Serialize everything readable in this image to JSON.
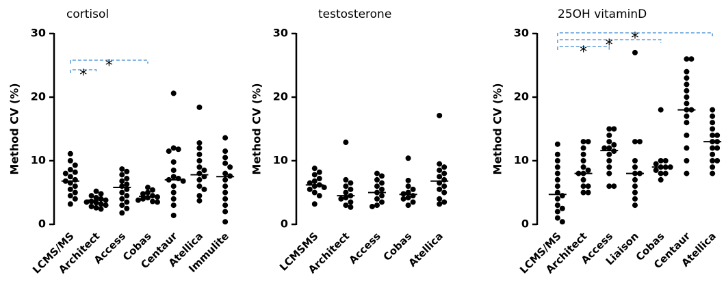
{
  "chart_data": [
    {
      "type": "dot",
      "title": "cortisol",
      "ylabel": "Method CV (%)",
      "categories": [
        "LCMS/MS",
        "Architect",
        "Access",
        "Cobas",
        "Centaur",
        "Atellica",
        "Immulite"
      ],
      "values": [
        [
          11.1,
          10,
          9.3,
          8.6,
          8.2,
          8,
          7.5,
          7,
          6.8,
          6.5,
          6,
          5.5,
          5,
          4.5,
          4,
          3.2
        ],
        [
          5.2,
          4.8,
          4.5,
          4.2,
          4,
          3.8,
          3.6,
          3.5,
          3.4,
          3.2,
          3,
          2.8,
          2.6,
          2.4
        ],
        [
          8.7,
          8.3,
          7.8,
          7.2,
          6.8,
          6.3,
          6,
          5.5,
          5,
          4.5,
          4,
          3.5,
          3,
          2.5,
          1.8
        ],
        [
          5.8,
          5.4,
          5,
          4.8,
          4.5,
          4.3,
          4.2,
          4,
          3.8,
          3.6,
          3.5
        ],
        [
          20.6,
          12,
          11.8,
          11.5,
          9.8,
          8.5,
          7.5,
          7.2,
          7,
          6.8,
          6,
          5,
          4,
          3,
          1.4
        ],
        [
          18.4,
          12.8,
          12,
          11,
          10,
          9,
          8.5,
          8,
          7.5,
          7,
          6,
          5.5,
          4.5,
          3.7
        ],
        [
          13.6,
          11.5,
          10.5,
          9.6,
          9,
          8,
          7.6,
          7,
          6,
          5,
          4,
          3,
          2,
          0.4
        ]
      ],
      "medians": [
        6.8,
        3.8,
        5.8,
        4.4,
        7,
        7.8,
        7.5
      ],
      "comparisons": [
        {
          "groups": [
            0,
            1
          ],
          "label": "*"
        },
        {
          "groups": [
            0,
            3
          ],
          "label": "*"
        }
      ],
      "color": "#000000",
      "comparison_color": "#5b9bd5",
      "ylim": [
        0,
        30
      ],
      "yticks": [
        0,
        10,
        20,
        30
      ]
    },
    {
      "type": "dot",
      "title": "testosterone",
      "ylabel": "Method CV (%)",
      "categories": [
        "LCMSMS",
        "Architect",
        "Access",
        "Cobas",
        "Atellica"
      ],
      "values": [
        [
          8.8,
          8.2,
          7.8,
          7.2,
          6.8,
          6.5,
          6.2,
          6,
          5.8,
          5.5,
          5,
          4.5,
          3.2
        ],
        [
          12.9,
          7,
          6.5,
          6,
          5.5,
          5,
          4.5,
          4.2,
          4,
          3.5,
          3,
          2.7
        ],
        [
          8,
          7.6,
          7,
          6.5,
          6,
          5.5,
          5,
          4.5,
          4,
          3.5,
          3,
          2.8
        ],
        [
          10.4,
          6.9,
          6,
          5.5,
          5,
          4.8,
          4.5,
          4.2,
          4,
          3.5,
          3
        ],
        [
          17.1,
          9.5,
          9,
          8.5,
          8,
          7.5,
          7,
          6.5,
          6,
          5.5,
          5,
          4,
          3.5,
          3.2
        ]
      ],
      "medians": [
        6.2,
        4.5,
        5,
        4.7,
        6.8
      ],
      "comparisons": [],
      "color": "#000000",
      "comparison_color": "#5b9bd5",
      "ylim": [
        0,
        30
      ],
      "yticks": [
        0,
        10,
        20,
        30
      ]
    },
    {
      "type": "dot",
      "title": "25OH vitaminD",
      "ylabel": "Method CV (%)",
      "categories": [
        "LCMS/MS",
        "Architect",
        "Access",
        "Liaison",
        "Cobas",
        "Centaur",
        "Atellica"
      ],
      "values": [
        [
          12.6,
          11,
          10,
          9,
          8,
          7,
          6,
          5,
          4.5,
          4,
          3,
          2.5,
          2,
          1,
          0.4
        ],
        [
          13,
          13,
          12,
          11,
          10,
          9,
          8.5,
          8,
          8,
          7,
          6,
          6,
          5,
          5
        ],
        [
          15,
          15,
          14,
          13,
          12.5,
          12,
          12,
          11.5,
          11,
          10,
          9,
          8,
          6,
          6
        ],
        [
          27,
          13,
          13,
          10,
          9,
          8,
          8,
          7,
          6,
          5,
          4,
          3
        ],
        [
          18,
          10,
          10,
          9.5,
          9,
          9,
          9,
          8.5,
          8,
          8,
          7
        ],
        [
          26,
          26,
          24,
          23,
          22,
          21,
          20,
          19,
          18,
          18,
          17,
          16,
          14,
          12,
          10,
          8
        ],
        [
          18,
          17,
          16,
          15,
          14,
          14,
          13,
          13,
          12,
          12,
          11,
          10,
          10,
          9,
          8
        ]
      ],
      "medians": [
        4.7,
        8,
        11.6,
        8,
        9,
        18,
        13
      ],
      "comparisons": [
        {
          "groups": [
            0,
            2
          ],
          "label": "*"
        },
        {
          "groups": [
            0,
            4
          ],
          "label": "*"
        },
        {
          "groups": [
            0,
            6
          ],
          "label": "*"
        }
      ],
      "color": "#000000",
      "comparison_color": "#5b9bd5",
      "ylim": [
        0,
        30
      ],
      "yticks": [
        0,
        10,
        20,
        30
      ]
    }
  ]
}
